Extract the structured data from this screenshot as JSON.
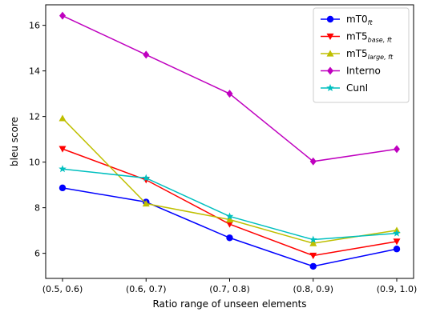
{
  "chart_data": {
    "type": "line",
    "categories": [
      "(0.5, 0.6)",
      "(0.6, 0.7)",
      "(0.7, 0.8)",
      "(0.8, 0.9)",
      "(0.9, 1.0)"
    ],
    "xlabel": "Ratio range of unseen elements",
    "ylabel": "bleu score",
    "ylim": [
      4.9,
      16.9
    ],
    "yticks": [
      6,
      8,
      10,
      12,
      14,
      16
    ],
    "grid": false,
    "legend_position": "top-right",
    "series": [
      {
        "name": "mT0",
        "subscript": "ft",
        "color": "#0000ff",
        "marker": "circle",
        "values": [
          8.87,
          8.25,
          6.68,
          5.43,
          6.19
        ]
      },
      {
        "name": "mT5",
        "subscript": "base, ft",
        "color": "#ff0000",
        "marker": "triangle-down",
        "values": [
          10.58,
          9.22,
          7.28,
          5.9,
          6.52
        ]
      },
      {
        "name": "mT5",
        "subscript": "large, ft",
        "color": "#bfbf00",
        "marker": "triangle-up",
        "values": [
          11.92,
          8.18,
          7.48,
          6.44,
          7.01
        ]
      },
      {
        "name": "Interno",
        "subscript": "",
        "color": "#bf00bf",
        "marker": "diamond",
        "values": [
          16.42,
          14.71,
          13.0,
          10.03,
          10.57
        ]
      },
      {
        "name": "CunI",
        "subscript": "",
        "color": "#00bfbf",
        "marker": "star",
        "values": [
          9.7,
          9.3,
          7.62,
          6.6,
          6.88
        ]
      }
    ]
  }
}
